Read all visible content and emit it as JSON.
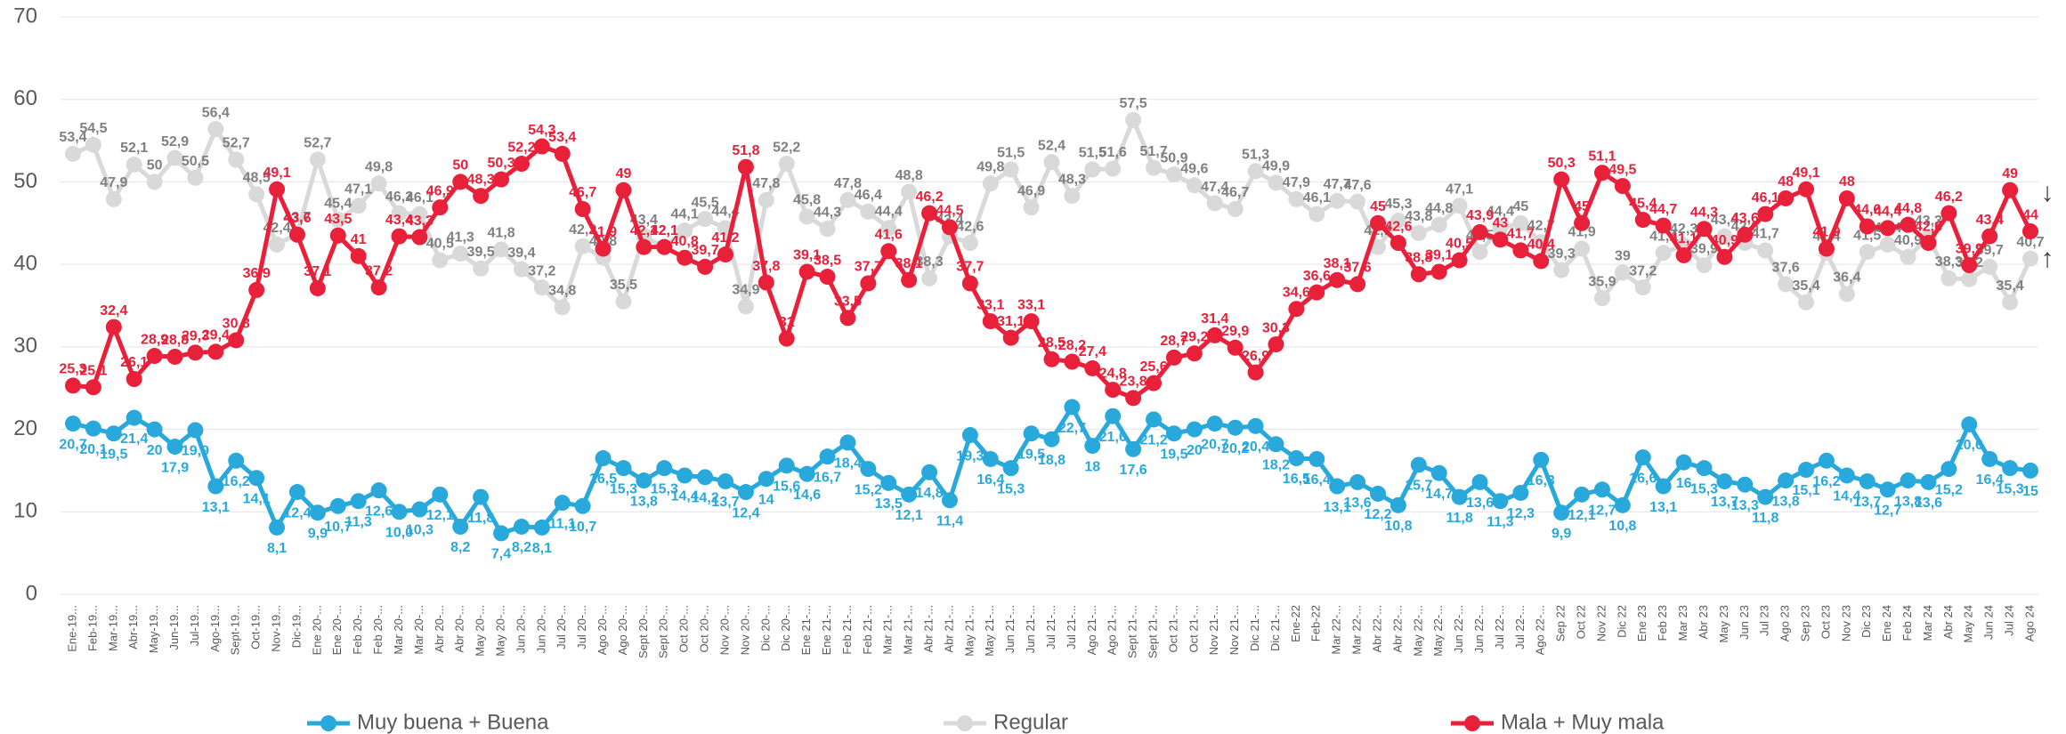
{
  "chart_data": {
    "type": "line",
    "categories": [
      "Ene-19...",
      "Feb-19...",
      "Mar-19...",
      "Abr-19...",
      "May-19...",
      "Jun-19...",
      "Jul-19...",
      "Ago-19...",
      "Sept-19...",
      "Oct-19...",
      "Nov-19...",
      "Dic-19...",
      "Ene 20-...",
      "Ene 20-...",
      "Feb 20-...",
      "Feb 20-...",
      "Mar 20-...",
      "Mar 20-...",
      "Abr 20-...",
      "Abr 20-...",
      "May 20-...",
      "May 20-...",
      "Jun 20-...",
      "Jun 20-...",
      "Jul 20-...",
      "Jul 20-...",
      "Ago 20-...",
      "Ago 20-...",
      "Sept 20-...",
      "Sept 20-...",
      "Oct 20-...",
      "Oct 20-...",
      "Nov 20-...",
      "Nov 20-...",
      "Dic 20-...",
      "Dic 20-...",
      "Ene 21-...",
      "Ene 21-...",
      "Feb 21-...",
      "Feb 21-...",
      "Mar 21-...",
      "Mar 21-...",
      "Abr 21-...",
      "Abr 21-...",
      "May 21-...",
      "May 21-...",
      "Jun 21-...",
      "Jun 21-...",
      "Jul 21-...",
      "Jul 21-...",
      "Ago 21-...",
      "Ago 21-...",
      "Sept 21-...",
      "Sept 21-...",
      "Oct 21-...",
      "Oct 21-...",
      "Nov 21-...",
      "Nov 21-...",
      "Dic 21-...",
      "Dic 21-...",
      "Ene-22",
      "Feb-22",
      "Mar 22-...",
      "Mar 22-...",
      "Abr 22-...",
      "Abr 22-...",
      "May 22-...",
      "May 22-...",
      "Jun 22-...",
      "Jun 22-...",
      "Jul 22-...",
      "Jul 22-...",
      "Ago 22-...",
      "Sep 22",
      "Oct 22",
      "Nov 22",
      "Dic 22",
      "Ene 23",
      "Feb 23",
      "Mar 23",
      "Abr 23",
      "May 23",
      "Jun 23",
      "Jul 23",
      "Ago 23",
      "Sep 23",
      "Oct 23",
      "Nov 23",
      "Dic 23",
      "Ene 24",
      "Feb 24",
      "Mar 24",
      "Abr 24",
      "May 24",
      "Jun 24",
      "Jul 24",
      "Ago 24"
    ],
    "ylim": [
      0,
      70
    ],
    "yticks": [
      0,
      10,
      20,
      30,
      40,
      50,
      60,
      70
    ],
    "grid": true,
    "series": [
      {
        "name": "Muy buena + Buena",
        "color": "#29a8dc",
        "values": [
          20.7,
          20.1,
          19.5,
          21.4,
          20,
          17.9,
          19.9,
          13.1,
          16.2,
          14.1,
          8.1,
          12.4,
          9.9,
          10.7,
          11.3,
          12.6,
          10,
          10.3,
          12.1,
          8.2,
          11.8,
          7.4,
          8.2,
          8.1,
          11.1,
          10.7,
          16.5,
          15.3,
          13.8,
          15.3,
          14.4,
          14.2,
          13.7,
          12.4,
          14,
          15.6,
          14.6,
          16.7,
          18.4,
          15.2,
          13.5,
          12.1,
          14.8,
          11.4,
          19.3,
          16.4,
          15.3,
          19.5,
          18.8,
          22.7,
          18,
          21.6,
          17.6,
          21.2,
          19.5,
          20,
          20.7,
          20.2,
          20.4,
          18.2,
          16.5,
          16.4,
          13.1,
          13.6,
          12.2,
          10.8,
          15.7,
          14.7,
          11.8,
          13.6,
          11.3,
          12.3,
          16.3,
          9.9,
          12.1,
          12.7,
          10.8,
          16.6,
          13.1,
          16,
          15.3,
          13.7,
          13.3,
          11.8,
          13.8,
          15.1,
          16.2,
          14.4,
          13.7,
          12.7,
          13.8,
          13.6,
          15.2,
          20.6,
          16.4,
          15.3,
          15
        ],
        "value_labels": [
          "20,7",
          "20,1",
          "19,5",
          "21,4",
          "20",
          "17,9",
          "19,9",
          "13,1",
          "16,2",
          "14,1",
          "8,1",
          "12,4",
          "9,9",
          "10,7",
          "11,3",
          "12,6",
          "10,0",
          "10,3",
          "12,1",
          "8,2",
          "11,8",
          "7,4",
          "8,2",
          "8,1",
          "11,1",
          "10,7",
          "16,5",
          "15,3",
          "13,8",
          "15,3",
          "14,4",
          "14,2",
          "13,7",
          "12,4",
          "14",
          "15,6",
          "14,6",
          "16,7",
          "18,4",
          "15,2",
          "13,5",
          "12,1",
          "14,8",
          "11,4",
          "19,3",
          "16,4",
          "15,3",
          "19,5",
          "18,8",
          "22,7",
          "18",
          "21,6",
          "17,6",
          "21,2",
          "19,5",
          "20",
          "20,7",
          "20,2",
          "20,4",
          "18,2",
          "16,5",
          "16,4",
          "13,1",
          "13,6",
          "12,2",
          "10,8",
          "15,7",
          "14,7",
          "11,8",
          "13,6",
          "11,3",
          "12,3",
          "16,3",
          "9,9",
          "12,1",
          "12,7",
          "10,8",
          "16,6",
          "13,1",
          "16",
          "15,3",
          "13,7",
          "13,3",
          "11,8",
          "13,8",
          "15,1",
          "16,2",
          "14,4",
          "13,7",
          "12,7",
          "13,8",
          "13,6",
          "15,2",
          "20,6",
          "16,4",
          "15,3",
          "15"
        ]
      },
      {
        "name": "Regular",
        "color": "#d9d9d9",
        "values": [
          53.4,
          54.5,
          47.9,
          52.1,
          50,
          52.9,
          50.5,
          56.4,
          52.7,
          48.5,
          42.4,
          43.7,
          52.7,
          45.4,
          47.1,
          49.8,
          46.2,
          46.1,
          40.5,
          41.3,
          39.5,
          41.8,
          39.4,
          37.2,
          34.8,
          42.2,
          40.8,
          35.5,
          43.4,
          42.1,
          44.1,
          45.5,
          44.4,
          34.9,
          47.8,
          52.2,
          45.8,
          44.3,
          47.8,
          46.4,
          44.4,
          48.8,
          38.3,
          43.4,
          42.6,
          49.8,
          51.5,
          46.9,
          52.4,
          48.3,
          51.5,
          51.6,
          57.5,
          51.7,
          50.9,
          49.6,
          47.4,
          46.7,
          51.3,
          49.9,
          47.9,
          46.1,
          47.7,
          47.6,
          42.1,
          45.3,
          43.8,
          44.8,
          47.1,
          41.5,
          44.4,
          45,
          42.7,
          39.3,
          41.9,
          35.9,
          39,
          37.2,
          41.4,
          42.3,
          39.9,
          43.4,
          42.6,
          41.7,
          37.6,
          35.4,
          41.4,
          36.4,
          41.5,
          42.4,
          40.9,
          43.3,
          38.3,
          38.2,
          39.7,
          35.4,
          40.7
        ],
        "value_labels": [
          "53,4",
          "54,5",
          "47,9",
          "52,1",
          "50",
          "52,9",
          "50,5",
          "56,4",
          "52,7",
          "48,5",
          "42,4",
          "43,7",
          "52,7",
          "45,4",
          "47,1",
          "49,8",
          "46,2",
          "46,1",
          "40,5",
          "41,3",
          "39,5",
          "41,8",
          "39,4",
          "37,2",
          "34,8",
          "42,2",
          "40,8",
          "35,5",
          "43,4",
          "42,1",
          "44,1",
          "45,5",
          "44,4",
          "34,9",
          "47,8",
          "52,2",
          "45,8",
          "44,3",
          "47,8",
          "46,4",
          "44,4",
          "48,8",
          "38,3",
          "43,4",
          "42,6",
          "49,8",
          "51,5",
          "46,9",
          "52,4",
          "48,3",
          "51,5",
          "51,6",
          "57,5",
          "51,7",
          "50,9",
          "49,6",
          "47,4",
          "46,7",
          "51,3",
          "49,9",
          "47,9",
          "46,1",
          "47,7",
          "47,6",
          "42,1",
          "45,3",
          "43,8",
          "44,8",
          "47,1",
          "41,5",
          "44,4",
          "45",
          "42,7",
          "39,3",
          "41,9",
          "35,9",
          "39",
          "37,2",
          "41,4",
          "42,3",
          "39,9",
          "43,4",
          "42,6",
          "41,7",
          "37,6",
          "35,4",
          "41,4",
          "36,4",
          "41,5",
          "42,4",
          "40,9",
          "43,3",
          "38,3",
          "38,2",
          "39,7",
          "35,4",
          "40,7"
        ]
      },
      {
        "name": "Mala + Muy mala",
        "color": "#e8203a",
        "values": [
          25.3,
          25.1,
          32.4,
          26.1,
          28.9,
          28.8,
          29.3,
          29.4,
          30.8,
          36.9,
          49.1,
          43.6,
          37.1,
          43.5,
          41,
          37.2,
          43.4,
          43.3,
          46.9,
          50,
          48.3,
          50.3,
          52.2,
          54.3,
          53.4,
          46.7,
          41.9,
          49,
          42.1,
          42.1,
          40.8,
          39.7,
          41.2,
          51.8,
          37.8,
          31,
          39.1,
          38.5,
          33.5,
          37.7,
          41.6,
          38.1,
          46.2,
          44.5,
          37.7,
          33.1,
          31.1,
          33.1,
          28.5,
          28.2,
          27.4,
          24.8,
          23.8,
          25.6,
          28.7,
          29.2,
          31.4,
          29.9,
          26.9,
          30.3,
          34.6,
          36.6,
          38.1,
          37.6,
          45,
          42.6,
          38.8,
          39.1,
          40.5,
          43.9,
          43,
          41.7,
          40.4,
          50.3,
          45,
          51.1,
          49.5,
          45.4,
          44.7,
          41.1,
          44.3,
          40.9,
          43.6,
          46.1,
          48,
          49.1,
          41.9,
          48,
          44.6,
          44.4,
          44.8,
          42.6,
          46.2,
          39.9,
          43.4,
          49,
          44
        ],
        "value_labels": [
          "25,3",
          "25,1",
          "32,4",
          "26,1",
          "28,9",
          "28,8",
          "29,3",
          "29,4",
          "30,8",
          "36,9",
          "49,1",
          "43,6",
          "37,1",
          "43,5",
          "41",
          "37,2",
          "43,4",
          "43,3",
          "46,9",
          "50",
          "48,3",
          "50,3",
          "52,2",
          "54,3",
          "53,4",
          "46,7",
          "41,9",
          "49",
          "42,1",
          "42,1",
          "40,8",
          "39,7",
          "41,2",
          "51,8",
          "37,8",
          "31",
          "39,1",
          "38,5",
          "33,5",
          "37,7",
          "41,6",
          "38,1",
          "46,2",
          "44,5",
          "37,7",
          "33,1",
          "31,1",
          "33,1",
          "28,5",
          "28,2",
          "27,4",
          "24,8",
          "23,8",
          "25,6",
          "28,7",
          "29,2",
          "31,4",
          "29,9",
          "26,9",
          "30,3",
          "34,6",
          "36,6",
          "38,1",
          "37,6",
          "45",
          "42,6",
          "38,8",
          "39,1",
          "40,5",
          "43,9",
          "43",
          "41,7",
          "40,4",
          "50,3",
          "45",
          "51,1",
          "49,5",
          "45,4",
          "44,7",
          "41,1",
          "44,3",
          "40,9",
          "43,6",
          "46,1",
          "48",
          "49,1",
          "41,9",
          "48",
          "44,6",
          "44,4",
          "44,8",
          "42,6",
          "46,2",
          "39,9",
          "43,4",
          "49",
          "44"
        ]
      }
    ]
  }
}
